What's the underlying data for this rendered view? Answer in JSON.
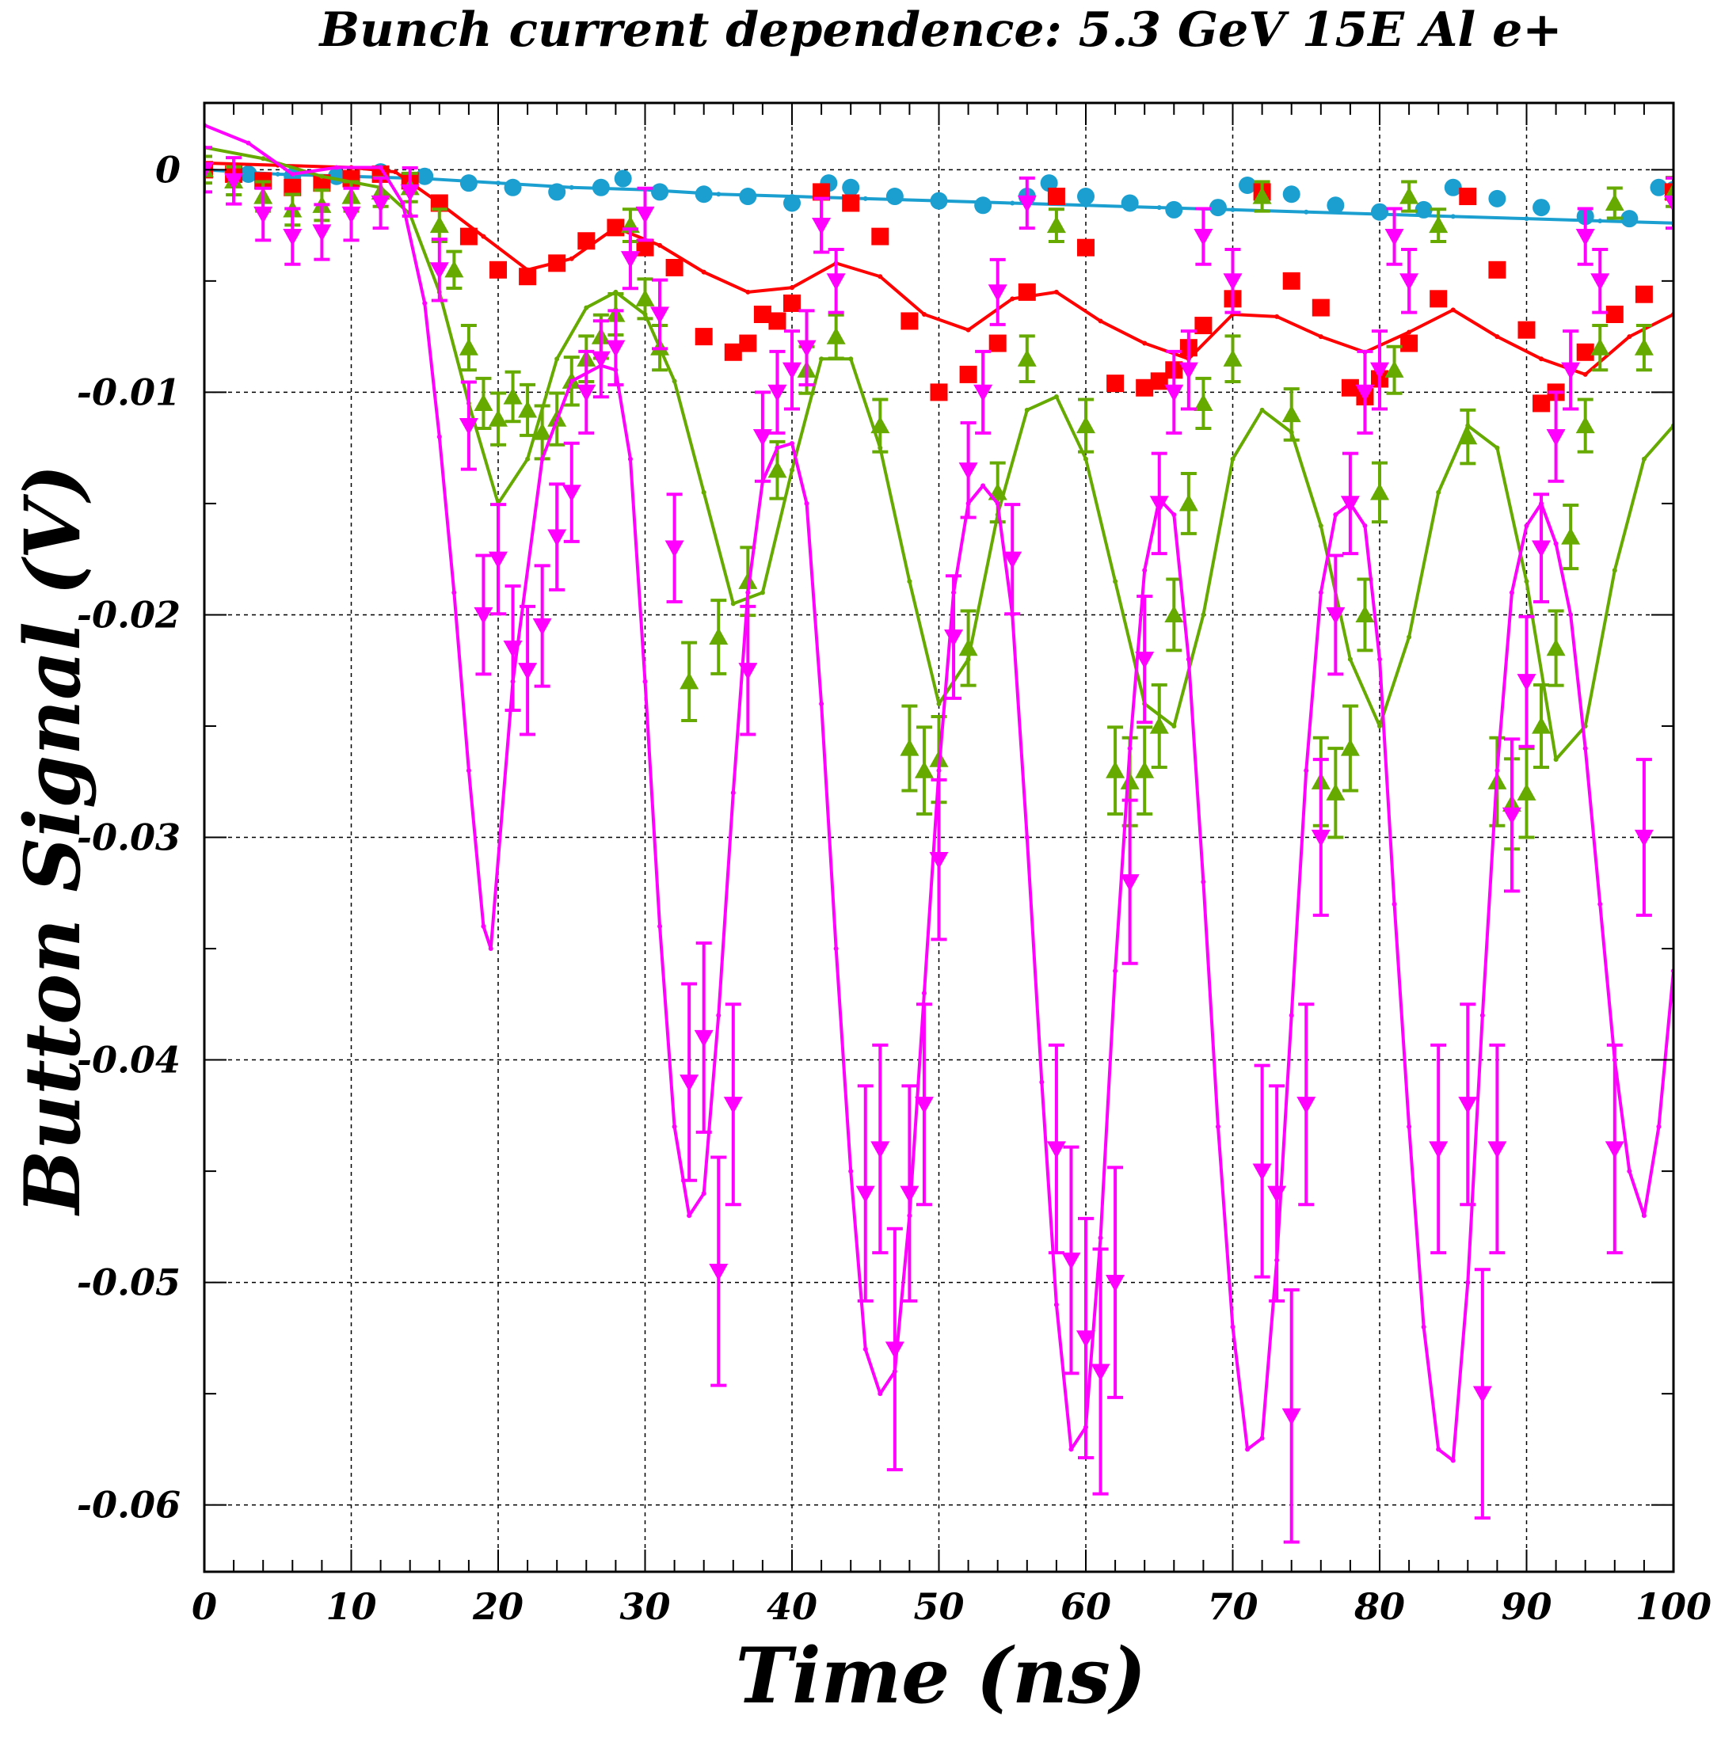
{
  "chart_data": {
    "type": "line",
    "title": "Bunch current dependence: 5.3 GeV 15E Al e+",
    "xlabel": "Time (ns)",
    "ylabel": "Button Signal (V)",
    "xlim": [
      0,
      100
    ],
    "ylim": [
      -0.063,
      0.003
    ],
    "xticks": [
      0,
      10,
      20,
      30,
      40,
      50,
      60,
      70,
      80,
      90,
      100
    ],
    "xtick_labels": [
      "0",
      "10",
      "20",
      "30",
      "40",
      "50",
      "60",
      "70",
      "80",
      "90",
      "100"
    ],
    "yticks": [
      0,
      -0.01,
      -0.02,
      -0.03,
      -0.04,
      -0.05,
      -0.06
    ],
    "ytick_labels": [
      "0",
      "-0.01",
      "-0.02",
      "-0.03",
      "-0.04",
      "-0.05",
      "-0.06"
    ],
    "grid": true,
    "legend": "none",
    "colors": {
      "cyan": "#1a9fd0",
      "red": "#ff0000",
      "green": "#66aa00",
      "magenta": "#ff00ff",
      "axis": "#000000"
    },
    "series": [
      {
        "color": "cyan",
        "marker": "circle",
        "line": {
          "x": [
            0,
            5,
            10,
            15,
            20,
            25,
            30,
            35,
            40,
            45,
            50,
            55,
            60,
            65,
            70,
            75,
            80,
            85,
            90,
            95,
            100
          ],
          "y": [
            0,
            -0.0002,
            -0.0003,
            -0.0004,
            -0.0006,
            -0.0008,
            -0.0009,
            -0.0011,
            -0.0012,
            -0.0013,
            -0.0014,
            -0.0015,
            -0.0016,
            -0.0017,
            -0.0018,
            -0.0019,
            -0.002,
            -0.0021,
            -0.0022,
            -0.0023,
            -0.0024
          ]
        },
        "points": {
          "x": [
            0,
            3,
            6,
            9,
            12,
            15,
            18,
            21,
            24,
            27,
            28.5,
            31,
            34,
            37,
            40,
            42.5,
            44,
            47,
            50,
            53,
            56,
            57.5,
            60,
            63,
            66,
            69,
            71,
            74,
            77,
            80,
            83,
            85,
            88,
            91,
            94,
            97,
            99,
            100
          ],
          "y": [
            0,
            -0.0002,
            -0.0003,
            -0.0003,
            -0.0001,
            -0.0003,
            -0.0006,
            -0.0008,
            -0.001,
            -0.0008,
            -0.0004,
            -0.001,
            -0.0011,
            -0.0012,
            -0.0015,
            -0.0006,
            -0.0008,
            -0.0012,
            -0.0014,
            -0.0016,
            -0.0012,
            -0.0006,
            -0.0012,
            -0.0015,
            -0.0018,
            -0.0017,
            -0.0007,
            -0.0011,
            -0.0016,
            -0.0019,
            -0.0018,
            -0.0008,
            -0.0013,
            -0.0017,
            -0.0021,
            -0.0022,
            -0.0008,
            -0.0009
          ]
        }
      },
      {
        "color": "red",
        "marker": "square",
        "line": {
          "x": [
            0,
            5,
            10,
            13,
            16,
            19,
            22,
            25,
            28,
            31,
            34,
            37,
            40,
            43,
            46,
            49,
            52,
            55,
            58,
            61,
            64,
            67,
            70,
            73,
            76,
            79,
            82,
            85,
            88,
            91,
            94,
            97,
            100
          ],
          "y": [
            0.0003,
            0.0002,
            0.0001,
            -0.0001,
            -0.0015,
            -0.003,
            -0.0045,
            -0.004,
            -0.0026,
            -0.0034,
            -0.0046,
            -0.0055,
            -0.0053,
            -0.0042,
            -0.0048,
            -0.0065,
            -0.0072,
            -0.0058,
            -0.0055,
            -0.0068,
            -0.0078,
            -0.0085,
            -0.0065,
            -0.0066,
            -0.0075,
            -0.0082,
            -0.0073,
            -0.0063,
            -0.0075,
            -0.0085,
            -0.0092,
            -0.0075,
            -0.0065
          ]
        },
        "points": {
          "x": [
            0,
            2,
            4,
            6,
            8,
            10,
            12,
            14,
            16,
            18,
            20,
            22,
            24,
            26,
            28,
            30,
            32,
            34,
            36,
            37,
            38,
            39,
            40,
            42,
            44,
            46,
            48,
            50,
            52,
            54,
            56,
            58,
            60,
            62,
            64,
            65,
            66,
            67,
            68,
            70,
            72,
            74,
            76,
            78,
            79,
            80,
            82,
            84,
            86,
            88,
            90,
            91,
            92,
            94,
            96,
            98,
            100
          ],
          "y": [
            0,
            -0.0002,
            -0.0005,
            -0.0008,
            -0.0006,
            -0.0004,
            -0.0002,
            -0.0005,
            -0.0015,
            -0.003,
            -0.0045,
            -0.0048,
            -0.0042,
            -0.0032,
            -0.0026,
            -0.0035,
            -0.0044,
            -0.0075,
            -0.0082,
            -0.0078,
            -0.0065,
            -0.0068,
            -0.006,
            -0.001,
            -0.0015,
            -0.003,
            -0.0068,
            -0.01,
            -0.0092,
            -0.0078,
            -0.0055,
            -0.0012,
            -0.0035,
            -0.0096,
            -0.0098,
            -0.0095,
            -0.009,
            -0.008,
            -0.007,
            -0.0058,
            -0.001,
            -0.005,
            -0.0062,
            -0.0098,
            -0.0102,
            -0.0094,
            -0.0078,
            -0.0058,
            -0.0012,
            -0.0045,
            -0.0072,
            -0.0105,
            -0.01,
            -0.0082,
            -0.0065,
            -0.0056,
            -0.001
          ]
        }
      },
      {
        "color": "green",
        "marker": "triangle-up",
        "line": {
          "x": [
            0,
            4,
            8,
            12,
            14,
            16,
            18,
            20,
            22,
            24,
            26,
            28,
            30,
            32,
            34,
            36,
            38,
            40,
            42,
            44,
            46,
            48,
            50,
            52,
            54,
            56,
            58,
            60,
            62,
            64,
            66,
            68,
            70,
            72,
            74,
            76,
            78,
            80,
            82,
            84,
            86,
            88,
            90,
            92,
            94,
            96,
            98,
            100
          ],
          "y": [
            0.001,
            0.0005,
            -0.0003,
            -0.0008,
            -0.002,
            -0.0055,
            -0.0105,
            -0.015,
            -0.013,
            -0.0085,
            -0.0062,
            -0.0055,
            -0.0065,
            -0.0095,
            -0.0145,
            -0.0195,
            -0.019,
            -0.0135,
            -0.0085,
            -0.0085,
            -0.0125,
            -0.0185,
            -0.024,
            -0.022,
            -0.0155,
            -0.0108,
            -0.0102,
            -0.013,
            -0.0185,
            -0.024,
            -0.025,
            -0.02,
            -0.013,
            -0.0108,
            -0.0118,
            -0.016,
            -0.022,
            -0.025,
            -0.021,
            -0.0145,
            -0.0115,
            -0.0125,
            -0.0185,
            -0.0265,
            -0.025,
            -0.018,
            -0.013,
            -0.0115
          ]
        },
        "points": {
          "x": [
            0,
            2,
            4,
            6,
            8,
            10,
            12,
            14,
            16,
            17,
            18,
            19,
            20,
            21,
            22,
            23,
            24,
            25,
            26,
            27,
            28,
            29,
            30,
            31,
            33,
            35,
            37,
            39,
            41,
            43,
            46,
            48,
            49,
            50,
            52,
            54,
            56,
            58,
            60,
            62,
            63,
            64,
            65,
            66,
            67,
            68,
            70,
            72,
            74,
            76,
            77,
            78,
            79,
            80,
            81,
            82,
            84,
            86,
            88,
            89,
            90,
            91,
            92,
            93,
            94,
            95,
            96,
            98,
            100
          ],
          "y": [
            0,
            -0.0005,
            -0.0012,
            -0.0018,
            -0.0016,
            -0.0012,
            -0.001,
            -0.0008,
            -0.0025,
            -0.0045,
            -0.008,
            -0.0105,
            -0.0112,
            -0.0102,
            -0.0108,
            -0.0118,
            -0.0112,
            -0.0095,
            -0.0085,
            -0.0075,
            -0.0065,
            -0.0025,
            -0.0058,
            -0.008,
            -0.023,
            -0.021,
            -0.0185,
            -0.0135,
            -0.009,
            -0.0075,
            -0.0115,
            -0.026,
            -0.027,
            -0.0265,
            -0.0215,
            -0.0145,
            -0.0085,
            -0.0025,
            -0.0115,
            -0.027,
            -0.0275,
            -0.027,
            -0.025,
            -0.02,
            -0.015,
            -0.0105,
            -0.0085,
            -0.0012,
            -0.011,
            -0.0275,
            -0.028,
            -0.026,
            -0.02,
            -0.0145,
            -0.009,
            -0.0012,
            -0.0025,
            -0.012,
            -0.0275,
            -0.0285,
            -0.028,
            -0.025,
            -0.0215,
            -0.0165,
            -0.0115,
            -0.008,
            -0.0015,
            -0.008,
            -0.001
          ]
        }
      },
      {
        "color": "magenta",
        "marker": "triangle-down",
        "line": {
          "x": [
            0,
            3,
            6,
            9,
            12,
            13.5,
            15,
            16,
            17,
            18,
            19,
            19.5,
            21,
            23,
            25,
            27,
            28,
            29,
            30,
            31,
            32,
            33,
            34,
            35,
            36,
            37,
            38,
            39,
            40,
            41,
            42,
            43,
            44,
            45,
            46,
            47,
            48,
            49,
            50,
            51,
            52,
            53,
            54,
            55,
            56,
            57,
            58,
            59,
            60,
            61,
            62,
            63,
            64,
            65,
            66,
            67,
            68,
            69,
            70,
            71,
            72,
            73,
            74,
            75,
            76,
            77,
            78,
            79,
            80,
            81,
            82,
            83,
            84,
            85,
            86,
            87,
            88,
            89,
            90,
            91,
            92,
            93,
            94,
            95,
            96,
            97,
            98,
            99,
            100
          ],
          "y": [
            0.002,
            0.0012,
            -0.0002,
            0.0001,
            0.0001,
            -0.0015,
            -0.006,
            -0.012,
            -0.019,
            -0.027,
            -0.034,
            -0.035,
            -0.023,
            -0.013,
            -0.0095,
            -0.0088,
            -0.009,
            -0.013,
            -0.023,
            -0.034,
            -0.043,
            -0.047,
            -0.046,
            -0.038,
            -0.028,
            -0.019,
            -0.014,
            -0.0125,
            -0.0123,
            -0.015,
            -0.024,
            -0.035,
            -0.045,
            -0.053,
            -0.055,
            -0.054,
            -0.047,
            -0.037,
            -0.027,
            -0.019,
            -0.015,
            -0.0142,
            -0.015,
            -0.02,
            -0.03,
            -0.041,
            -0.051,
            -0.0575,
            -0.0565,
            -0.048,
            -0.036,
            -0.026,
            -0.018,
            -0.0148,
            -0.0155,
            -0.022,
            -0.032,
            -0.043,
            -0.052,
            -0.0575,
            -0.057,
            -0.049,
            -0.038,
            -0.027,
            -0.019,
            -0.0155,
            -0.015,
            -0.016,
            -0.022,
            -0.033,
            -0.043,
            -0.052,
            -0.0575,
            -0.058,
            -0.05,
            -0.038,
            -0.027,
            -0.019,
            -0.016,
            -0.015,
            -0.0168,
            -0.02,
            -0.026,
            -0.033,
            -0.04,
            -0.045,
            -0.047,
            -0.043,
            -0.036
          ]
        },
        "points": {
          "x": [
            0,
            2,
            4,
            6,
            8,
            10,
            12,
            14,
            16,
            18,
            19,
            20,
            21,
            22,
            23,
            24,
            25,
            26,
            27,
            28,
            29,
            30,
            31,
            32,
            33,
            34,
            35,
            36,
            37,
            38,
            39,
            40,
            41,
            42,
            43,
            45,
            46,
            47,
            48,
            49,
            50,
            51,
            52,
            53,
            54,
            55,
            56,
            58,
            59,
            60,
            61,
            62,
            63,
            64,
            65,
            66,
            67,
            68,
            70,
            72,
            73,
            74,
            75,
            76,
            77,
            78,
            79,
            80,
            81,
            82,
            84,
            86,
            87,
            88,
            89,
            90,
            91,
            92,
            93,
            94,
            95,
            96,
            98,
            100
          ],
          "y": [
            0,
            -0.0005,
            -0.002,
            -0.003,
            -0.0028,
            -0.002,
            -0.0015,
            -0.001,
            -0.0045,
            -0.0115,
            -0.02,
            -0.0175,
            -0.0215,
            -0.0225,
            -0.0205,
            -0.0165,
            -0.0145,
            -0.01,
            -0.0085,
            -0.008,
            -0.004,
            -0.002,
            -0.0065,
            -0.017,
            -0.041,
            -0.039,
            -0.0495,
            -0.042,
            -0.0225,
            -0.012,
            -0.01,
            -0.009,
            -0.008,
            -0.0025,
            -0.005,
            -0.046,
            -0.044,
            -0.053,
            -0.046,
            -0.042,
            -0.031,
            -0.021,
            -0.0135,
            -0.01,
            -0.0055,
            -0.0175,
            -0.0015,
            -0.044,
            -0.049,
            -0.0525,
            -0.054,
            -0.05,
            -0.032,
            -0.022,
            -0.015,
            -0.01,
            -0.009,
            -0.003,
            -0.005,
            -0.045,
            -0.046,
            -0.056,
            -0.042,
            -0.03,
            -0.02,
            -0.015,
            -0.01,
            -0.009,
            -0.003,
            -0.005,
            -0.044,
            -0.042,
            -0.055,
            -0.044,
            -0.029,
            -0.023,
            -0.017,
            -0.012,
            -0.009,
            -0.003,
            -0.005,
            -0.044,
            -0.03,
            -0.0015
          ]
        }
      }
    ]
  }
}
